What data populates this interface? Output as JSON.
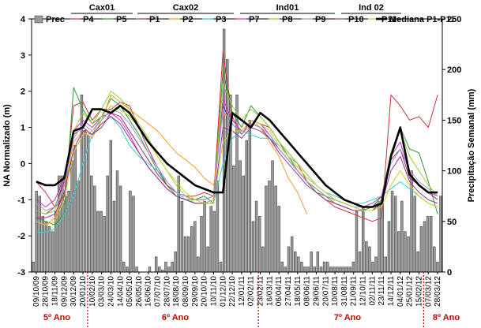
{
  "chart_data": {
    "type": "line",
    "ylabel_left": "NA Normalizado (m)",
    "ylabel_right": "Precipitação Semanal (mm)",
    "ylim_left": [
      -3,
      4
    ],
    "ylim_right": [
      0,
      250
    ],
    "yticks_left": [
      "-3",
      "-2",
      "-1",
      "0",
      "1",
      "2",
      "3",
      "4"
    ],
    "yticks_right": [
      "0",
      "50",
      "100",
      "150",
      "200",
      "250"
    ],
    "x_ticks": [
      "09/10/09",
      "28/10/09",
      "18/11/09",
      "09/12/09",
      "30/12/09",
      "20/01/10",
      "10/02/10",
      "03/03/10",
      "24/03/10",
      "14/04/10",
      "05/05/10",
      "26/05/10",
      "16/06/10",
      "07/07/10",
      "28/07/10",
      "18/08/10",
      "08/09/10",
      "29/09/10",
      "20/10/10",
      "10/11/10",
      "01/12/10",
      "22/12/10",
      "12/01/11",
      "02/02/11",
      "23/02/11",
      "16/03/11",
      "06/04/11",
      "27/04/11",
      "18/05/11",
      "08/06/11",
      "29/06/11",
      "20/07/11",
      "10/08/11",
      "31/08/11",
      "21/09/11",
      "12/10/11",
      "02/11/11",
      "23/11/11",
      "14/12/11",
      "04/01/12",
      "25/01/12",
      "15/02/12",
      "07/03/12",
      "28/03/12"
    ],
    "groups": [
      {
        "label": "Cax01",
        "over": [
          "P4",
          "P5"
        ]
      },
      {
        "label": "Cax02",
        "over": [
          "P1",
          "P2",
          "P3"
        ]
      },
      {
        "label": "Ind01",
        "over": [
          "P7",
          "P8",
          "P9"
        ]
      },
      {
        "label": "Ind 02",
        "over": [
          "P10",
          "P11"
        ]
      }
    ],
    "years": [
      {
        "label": "5º Ano",
        "start_index": 0
      },
      {
        "label": "6º Ano",
        "start_index": 6
      },
      {
        "label": "7º Ano",
        "start_index": 24
      },
      {
        "label": "8º Ano",
        "start_index": 42
      }
    ],
    "precipitation": {
      "name": "Prec",
      "values": [
        10,
        80,
        75,
        55,
        50,
        45,
        40,
        60,
        95,
        95,
        75,
        80,
        110,
        125,
        90,
        175,
        140,
        135,
        95,
        85,
        60,
        60,
        55,
        95,
        130,
        70,
        100,
        85,
        10,
        5,
        80,
        75,
        5,
        0,
        0,
        0,
        5,
        0,
        15,
        5,
        2,
        10,
        5,
        10,
        20,
        95,
        70,
        35,
        35,
        45,
        50,
        15,
        55,
        70,
        25,
        65,
        60,
        90,
        10,
        240,
        210,
        175,
        105,
        175,
        110,
        95,
        130,
        150,
        50,
        70,
        55,
        25,
        85,
        90,
        110,
        85,
        65,
        10,
        5,
        25,
        35,
        20,
        15,
        10,
        5,
        5,
        20,
        5,
        20,
        5,
        10,
        10,
        5,
        5,
        5,
        5,
        5,
        5,
        5,
        10,
        60,
        20,
        65,
        30,
        25,
        10,
        15,
        70,
        75,
        15,
        50,
        80,
        75,
        40,
        70,
        40,
        35,
        100,
        75,
        20,
        45,
        50,
        55,
        55,
        25,
        10,
        75
      ],
      "color": "#999999"
    },
    "series": [
      {
        "name": "P4",
        "color": "#cc3333",
        "x": [
          0,
          1,
          2,
          3,
          4,
          5,
          6,
          7,
          8,
          9,
          10,
          11,
          12,
          13,
          14,
          15,
          16,
          17,
          18,
          19,
          20,
          21,
          22,
          23,
          24,
          25,
          26,
          27,
          28,
          29,
          30,
          31,
          32,
          33,
          34,
          35,
          36,
          37,
          38,
          39,
          40,
          41,
          42,
          43
        ],
        "y": [
          -0.5,
          -0.8,
          -1.2,
          -0.9,
          1.6,
          1.7,
          1.2,
          1.5,
          1.5,
          1.7,
          1.6,
          1.0,
          0.4,
          -0.1,
          -0.6,
          -0.8,
          -0.9,
          -0.9,
          -0.8,
          -0.9,
          3.1,
          1.3,
          0.8,
          1.2,
          1.1,
          1.0,
          0.6,
          0.3,
          0.0,
          -0.5,
          -0.8,
          -1.0,
          -1.2,
          -1.3,
          -1.4,
          -1.5,
          -1.6,
          -1.5,
          1.9,
          1.6,
          1.2,
          1.3,
          1.0,
          1.9
        ]
      },
      {
        "name": "P5",
        "color": "#339933",
        "x": [
          0,
          1,
          2,
          3,
          4,
          5,
          6,
          7,
          8,
          9,
          10,
          11,
          12,
          13,
          14,
          15,
          16,
          17,
          18,
          19,
          20,
          21,
          22,
          23,
          24,
          25,
          26,
          27,
          28,
          29,
          30,
          31,
          32,
          33,
          34,
          35,
          36,
          37,
          38,
          39,
          40,
          41,
          42,
          43
        ],
        "y": [
          -1.5,
          -1.6,
          -1.7,
          -1.4,
          2.1,
          1.5,
          1.1,
          1.3,
          1.8,
          1.6,
          1.2,
          0.8,
          0.3,
          -0.2,
          -0.6,
          -0.9,
          -1.0,
          -1.0,
          -0.9,
          -1.1,
          2.6,
          1.4,
          1.0,
          1.6,
          1.3,
          1.0,
          0.6,
          0.2,
          -0.2,
          -0.5,
          -0.8,
          -0.9,
          -1.1,
          -1.2,
          -1.3,
          -1.3,
          -1.2,
          -0.9,
          0.3,
          1.0,
          0.4,
          0.3,
          -0.5,
          -1.4
        ]
      },
      {
        "name": "P1",
        "color": "#993366",
        "x": [
          0,
          1,
          2,
          3,
          4,
          5,
          6,
          7,
          8,
          9,
          10,
          11,
          12,
          13,
          14,
          15,
          16,
          17,
          18,
          19,
          20,
          21,
          22,
          23,
          24,
          25,
          26,
          27,
          28,
          29,
          30,
          31,
          32,
          33,
          34,
          35,
          36,
          37,
          38,
          39,
          40,
          41,
          42,
          43
        ],
        "y": [
          -1.3,
          -1.4,
          -1.2,
          -0.5,
          0.8,
          1.0,
          0.8,
          1.0,
          1.4,
          1.3,
          0.9,
          0.5,
          0.1,
          -0.3,
          -0.6,
          -0.8,
          -0.9,
          -1.0,
          -1.0,
          -0.9,
          1.6,
          1.1,
          0.8,
          1.1,
          1.0,
          0.7,
          0.4,
          0.1,
          -0.2,
          -0.5,
          -0.7,
          -0.9,
          -1.0,
          -1.1,
          -1.2,
          -1.2,
          -1.2,
          -1.0,
          0.1,
          0.4,
          -0.4,
          -0.6,
          -0.8,
          -1.0
        ]
      },
      {
        "name": "P2",
        "color": "#ff9933",
        "x": [
          0,
          1,
          2,
          3,
          4,
          5,
          6,
          7,
          8,
          9,
          10,
          11,
          12,
          13,
          14,
          15,
          16,
          17,
          18,
          19,
          20,
          21,
          22,
          23,
          24,
          25,
          26,
          27,
          28,
          29
        ],
        "y": [
          -1.6,
          -1.7,
          -1.5,
          -0.8,
          0.6,
          0.9,
          0.7,
          1.2,
          1.9,
          1.7,
          1.5,
          1.3,
          1.1,
          0.9,
          0.6,
          0.3,
          0.1,
          -0.1,
          -0.4,
          -0.6,
          1.4,
          1.2,
          0.9,
          1.2,
          1.0,
          0.6,
          0.2,
          -0.4,
          -0.8,
          -1.4
        ]
      },
      {
        "name": "P3",
        "color": "#33cccc",
        "x": [
          0,
          1,
          2,
          3,
          4,
          5,
          6,
          7,
          8,
          9,
          10,
          11,
          12,
          13,
          14,
          15,
          16,
          17,
          18,
          19,
          20,
          21,
          22,
          23,
          24,
          25,
          26,
          27,
          28,
          29,
          30,
          31,
          32,
          33,
          34,
          35,
          36,
          37,
          38,
          39,
          40,
          41,
          42,
          43
        ],
        "y": [
          -1.9,
          -1.9,
          -1.8,
          -1.4,
          -0.9,
          0.0,
          0.8,
          1.3,
          1.3,
          1.0,
          0.5,
          0.2,
          0.0,
          -0.2,
          -0.5,
          -0.8,
          -1.0,
          -1.1,
          -1.1,
          -1.1,
          0.0,
          0.7,
          0.9,
          0.8,
          0.7,
          0.7,
          0.5,
          0.2,
          0.0,
          -0.3,
          -0.6,
          -0.8,
          -0.9,
          -1.0,
          -1.1,
          -1.1,
          -1.0,
          -0.9,
          -0.7,
          -0.5,
          -0.7,
          -0.9,
          -1.1,
          -1.2
        ]
      },
      {
        "name": "P7",
        "color": "#cc33cc",
        "x": [
          0,
          1,
          2,
          3,
          4,
          5,
          6,
          7,
          8,
          9,
          10,
          11,
          12,
          13,
          14,
          15,
          16,
          17,
          18,
          19,
          20,
          21,
          22,
          23,
          24,
          25,
          26,
          27,
          28,
          29,
          30,
          31,
          32,
          33,
          34,
          35,
          36,
          37,
          38,
          39,
          40,
          41,
          42,
          43
        ],
        "y": [
          -1.0,
          -1.2,
          -1.0,
          -0.4,
          0.9,
          1.2,
          1.0,
          1.3,
          1.4,
          1.2,
          0.8,
          0.3,
          -0.1,
          -0.4,
          -0.7,
          -0.9,
          -1.0,
          -1.1,
          -1.1,
          -1.0,
          1.8,
          1.2,
          0.9,
          1.2,
          1.1,
          0.8,
          0.4,
          0.1,
          -0.2,
          -0.5,
          -0.7,
          -0.9,
          -1.0,
          -1.1,
          -1.2,
          -1.2,
          -1.1,
          -0.9,
          0.2,
          0.6,
          -0.3,
          -0.6,
          -0.8,
          -0.9
        ]
      },
      {
        "name": "P8",
        "color": "#99cc33",
        "x": [
          0,
          1,
          2,
          3,
          4,
          5,
          6,
          7,
          8,
          9,
          10,
          11,
          12,
          13,
          14,
          15,
          16,
          17,
          18,
          19,
          20,
          21,
          22,
          23,
          24,
          25,
          26,
          27,
          28,
          29,
          30,
          31,
          32,
          33,
          34,
          35,
          36,
          37,
          38,
          39,
          40,
          41,
          42,
          43
        ],
        "y": [
          -1.3,
          -1.4,
          -1.3,
          -0.6,
          0.9,
          1.4,
          1.1,
          1.5,
          2.0,
          1.8,
          1.5,
          1.1,
          0.7,
          0.2,
          -0.2,
          -0.6,
          -0.9,
          -1.1,
          -1.1,
          -1.0,
          2.2,
          1.6,
          1.2,
          1.5,
          1.3,
          1.0,
          0.6,
          0.3,
          0.0,
          -0.3,
          -0.6,
          -0.8,
          -1.0,
          -1.1,
          -1.2,
          -1.3,
          -1.3,
          -1.0,
          0.3,
          0.9,
          0.2,
          -0.2,
          -0.6,
          -0.9
        ]
      },
      {
        "name": "P9",
        "color": "#9999cc",
        "x": [
          0,
          1,
          2,
          3,
          4,
          5,
          6,
          7,
          8,
          9,
          10,
          11,
          12,
          13,
          14,
          15,
          16,
          17,
          18,
          19,
          20,
          21,
          22,
          23,
          24,
          25,
          26,
          27,
          28,
          29,
          30,
          31,
          32,
          33,
          34,
          35,
          36,
          37,
          38,
          39,
          40,
          41,
          42,
          43
        ],
        "y": [
          -1.1,
          -1.3,
          -1.2,
          -0.6,
          0.7,
          1.1,
          0.9,
          1.2,
          1.5,
          1.4,
          1.1,
          0.7,
          0.3,
          -0.1,
          -0.5,
          -0.8,
          -0.9,
          -1.0,
          -1.0,
          -0.9,
          1.5,
          1.1,
          0.8,
          1.1,
          1.0,
          0.8,
          0.4,
          0.1,
          -0.2,
          -0.5,
          -0.7,
          -0.9,
          -1.0,
          -1.1,
          -1.2,
          -1.2,
          -1.2,
          -1.0,
          0.0,
          0.4,
          -0.2,
          -0.5,
          -0.7,
          -0.9
        ]
      },
      {
        "name": "P10",
        "color": "#993399",
        "x": [
          0,
          1,
          2,
          3,
          4,
          5,
          6,
          7,
          8,
          9,
          10,
          11,
          12,
          13,
          14,
          15,
          16,
          17,
          18,
          19,
          20,
          21,
          22,
          23,
          24,
          25,
          26,
          27,
          28,
          29,
          30,
          31,
          32,
          33,
          34,
          35,
          36,
          37,
          38,
          39,
          40,
          41,
          42,
          43
        ],
        "y": [
          -1.5,
          -1.5,
          -1.4,
          -0.8,
          0.4,
          0.9,
          0.8,
          1.1,
          1.3,
          1.1,
          0.7,
          0.3,
          -0.1,
          -0.4,
          -0.7,
          -0.9,
          -1.0,
          -1.1,
          -1.1,
          -1.1,
          1.0,
          0.9,
          0.7,
          1.0,
          0.9,
          0.7,
          0.3,
          0.0,
          -0.3,
          -0.6,
          -0.8,
          -1.0,
          -1.1,
          -1.2,
          -1.3,
          -1.3,
          -1.3,
          -1.1,
          -0.2,
          0.2,
          -0.5,
          -0.8,
          -1.0,
          -1.1
        ]
      },
      {
        "name": "P11",
        "color": "#cccc33",
        "x": [
          0,
          1,
          2,
          3,
          4,
          5,
          6,
          7,
          8,
          9,
          10,
          11,
          12,
          13,
          14,
          15,
          16,
          17,
          18,
          19,
          20,
          21,
          22,
          23,
          24,
          25,
          26,
          27,
          28,
          29,
          30,
          31,
          32,
          33,
          34,
          35,
          36,
          37,
          38,
          39,
          40,
          41,
          42,
          43
        ],
        "y": [
          -1.6,
          -1.7,
          -1.6,
          -1.0,
          0.3,
          0.8,
          0.9,
          1.3,
          1.6,
          1.5,
          1.3,
          1.0,
          0.6,
          0.2,
          -0.2,
          -0.5,
          -0.8,
          -1.0,
          -1.1,
          -1.1,
          0.6,
          0.9,
          0.9,
          1.2,
          1.1,
          0.9,
          0.5,
          0.2,
          -0.1,
          -0.4,
          -0.6,
          -0.8,
          -1.0,
          -1.1,
          -1.2,
          -1.3,
          -1.3,
          -1.2,
          -0.6,
          -0.2,
          -0.6,
          -0.9,
          -1.1,
          -1.2
        ]
      },
      {
        "name": "Mediana P1-P11",
        "color": "#000000",
        "bold": true,
        "x": [
          0,
          1,
          2,
          3,
          4,
          5,
          6,
          7,
          8,
          9,
          10,
          11,
          12,
          13,
          14,
          15,
          16,
          17,
          18,
          19,
          20,
          21,
          22,
          23,
          24,
          25,
          26,
          27,
          28,
          29,
          30,
          31,
          32,
          33,
          34,
          35,
          36,
          37,
          38,
          39,
          40,
          41,
          42,
          43
        ],
        "y": [
          -0.5,
          -0.6,
          -0.6,
          -0.4,
          0.9,
          1.0,
          1.5,
          1.5,
          1.4,
          1.6,
          1.4,
          1.0,
          0.6,
          0.3,
          0.0,
          -0.2,
          -0.4,
          -0.6,
          -0.7,
          -0.8,
          -0.8,
          1.4,
          1.2,
          1.0,
          1.4,
          1.2,
          0.9,
          0.6,
          0.3,
          0.0,
          -0.3,
          -0.6,
          -0.8,
          -1.0,
          -1.1,
          -1.2,
          -1.2,
          -1.1,
          0.2,
          1.0,
          -0.3,
          -0.6,
          -0.8,
          -0.8
        ]
      }
    ],
    "legend": [
      "Prec",
      "P4",
      "P5",
      "P1",
      "P2",
      "P3",
      "P7",
      "P8",
      "P9",
      "P10",
      "P11",
      "Mediana P1-P11"
    ],
    "grid": false
  }
}
